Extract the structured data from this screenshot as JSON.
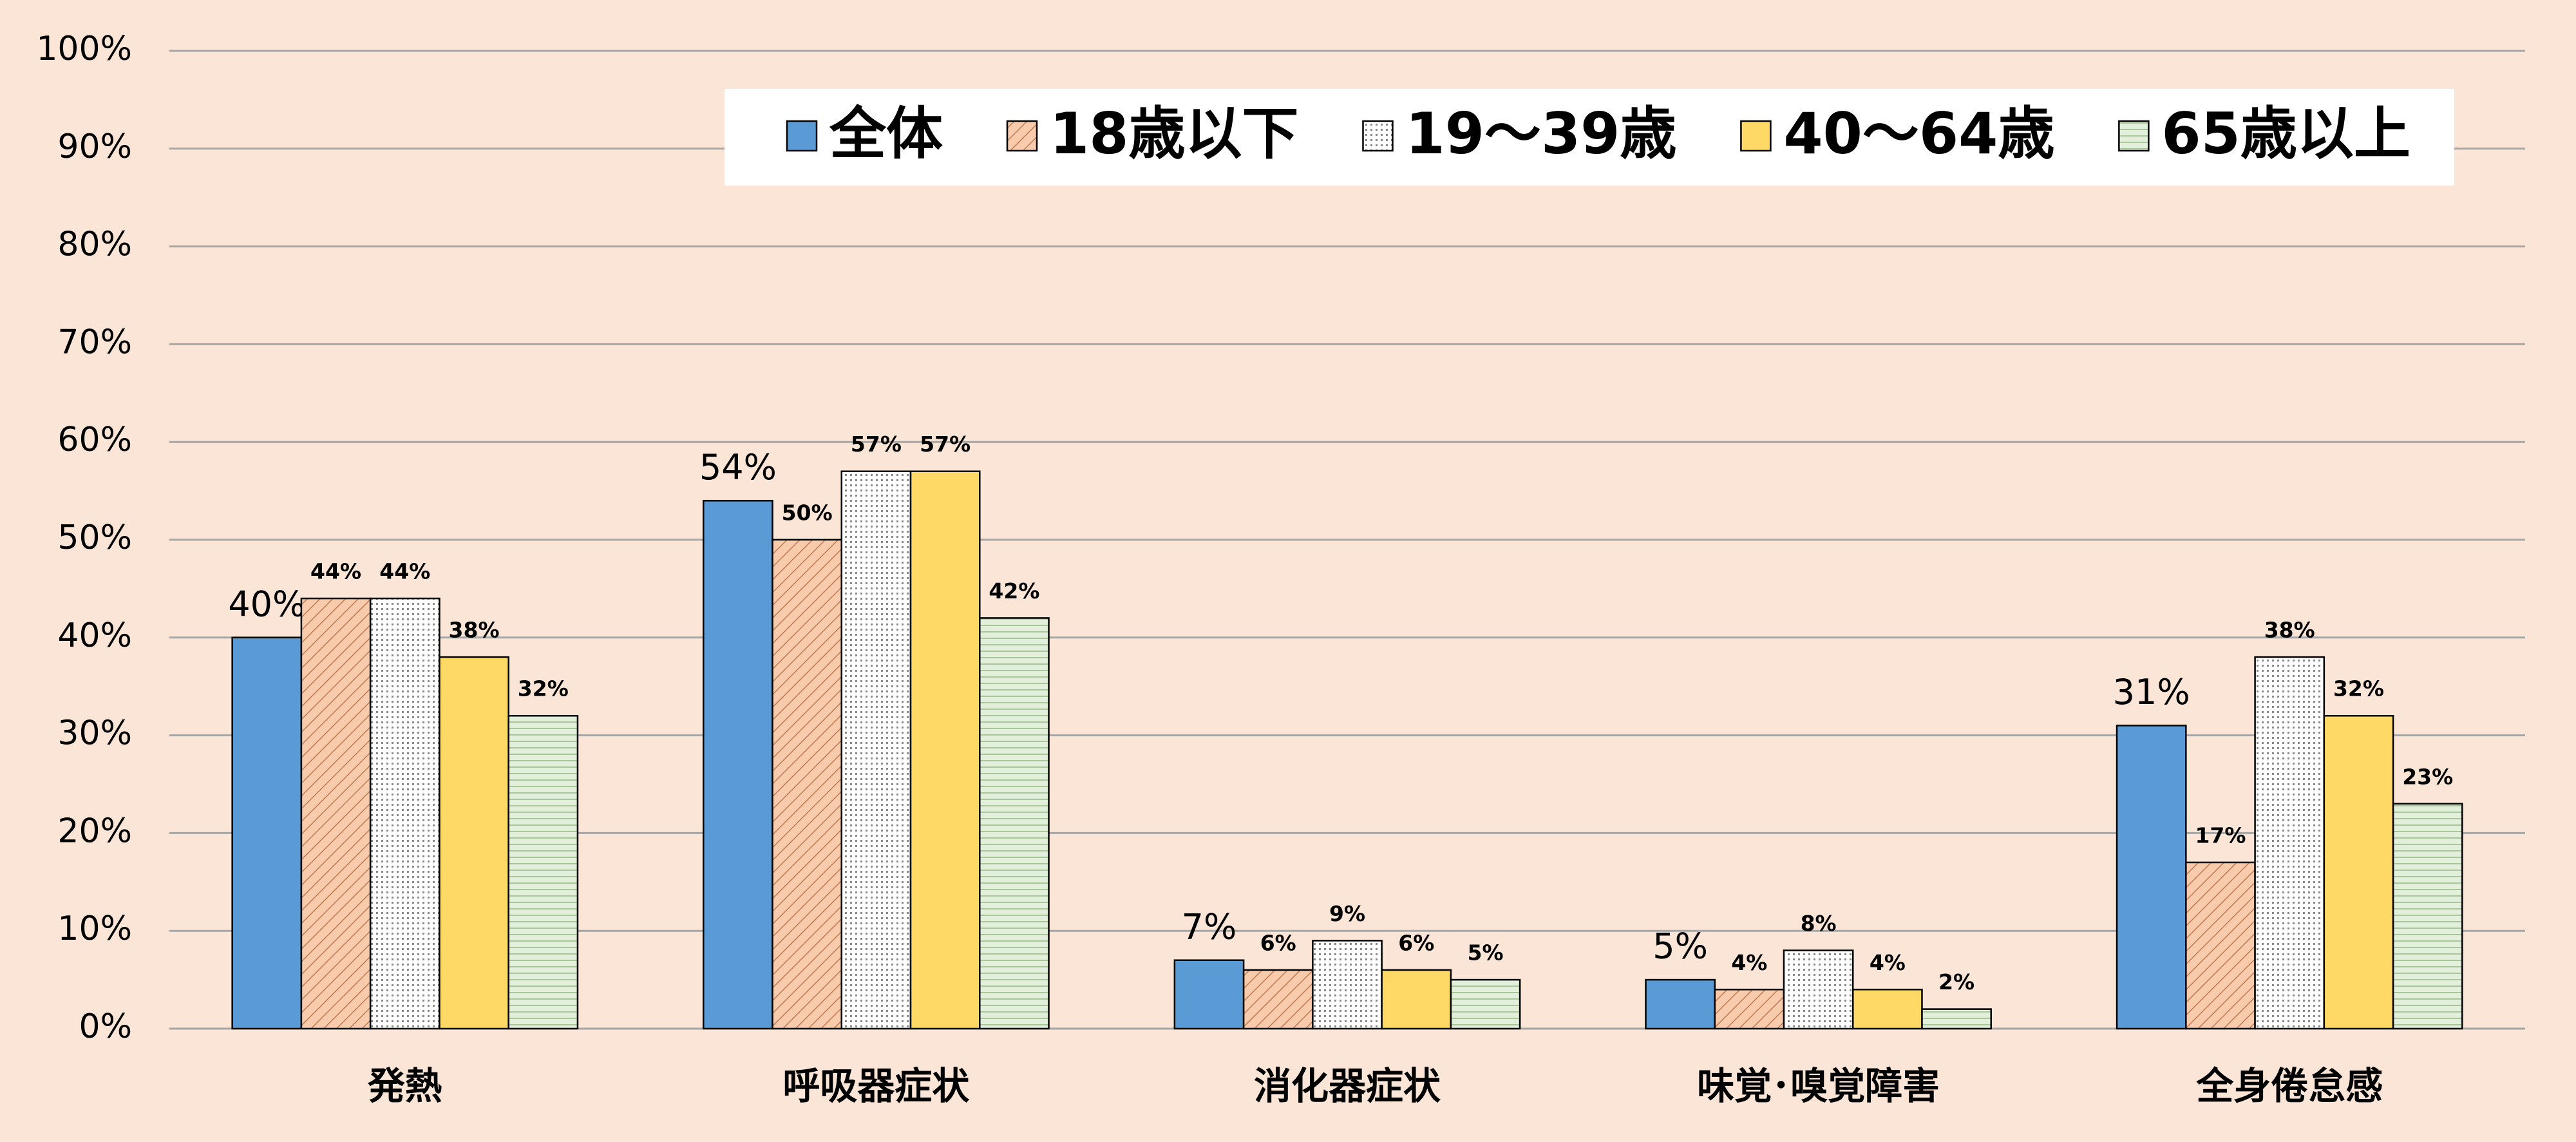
{
  "chart_data": {
    "type": "bar",
    "categories": [
      "発熱",
      "呼吸器症状",
      "消化器症状",
      "味覚･嗅覚障害",
      "全身倦怠感"
    ],
    "series": [
      {
        "name": "全体",
        "color": "#5b9bd5",
        "pattern": "solid",
        "values": [
          40,
          54,
          7,
          5,
          31
        ],
        "value_labels": [
          "40%",
          "54%",
          "7%",
          "5%",
          "31%"
        ]
      },
      {
        "name": "18歳以下",
        "color": "#f8cbad",
        "pattern": "diagonal",
        "values": [
          44,
          50,
          6,
          4,
          17
        ],
        "value_labels": [
          "44%",
          "50%",
          "6%",
          "4%",
          "17%"
        ]
      },
      {
        "name": "19～39歳",
        "color": "#ffffff",
        "pattern": "dots",
        "values": [
          44,
          57,
          9,
          8,
          38
        ],
        "value_labels": [
          "44%",
          "57%",
          "9%",
          "8%",
          "38%"
        ]
      },
      {
        "name": "40～64歳",
        "color": "#ffd966",
        "pattern": "solid",
        "values": [
          38,
          57,
          6,
          4,
          32
        ],
        "value_labels": [
          "38%",
          "57%",
          "6%",
          "4%",
          "32%"
        ]
      },
      {
        "name": "65歳以上",
        "color": "#e2efda",
        "pattern": "horizontal",
        "values": [
          32,
          42,
          5,
          2,
          23
        ],
        "value_labels": [
          "32%",
          "42%",
          "5%",
          "2%",
          "23%"
        ]
      }
    ],
    "ylim": [
      0,
      100
    ],
    "yticks": [
      {
        "value": 0,
        "label": "0%"
      },
      {
        "value": 10,
        "label": "10%"
      },
      {
        "value": 20,
        "label": "20%"
      },
      {
        "value": 30,
        "label": "30%"
      },
      {
        "value": 40,
        "label": "40%"
      },
      {
        "value": 50,
        "label": "50%"
      },
      {
        "value": 60,
        "label": "60%"
      },
      {
        "value": 70,
        "label": "70%"
      },
      {
        "value": 80,
        "label": "80%"
      },
      {
        "value": 90,
        "label": "90%"
      },
      {
        "value": 100,
        "label": "100%"
      }
    ],
    "grid": true,
    "legend": "top-right"
  }
}
